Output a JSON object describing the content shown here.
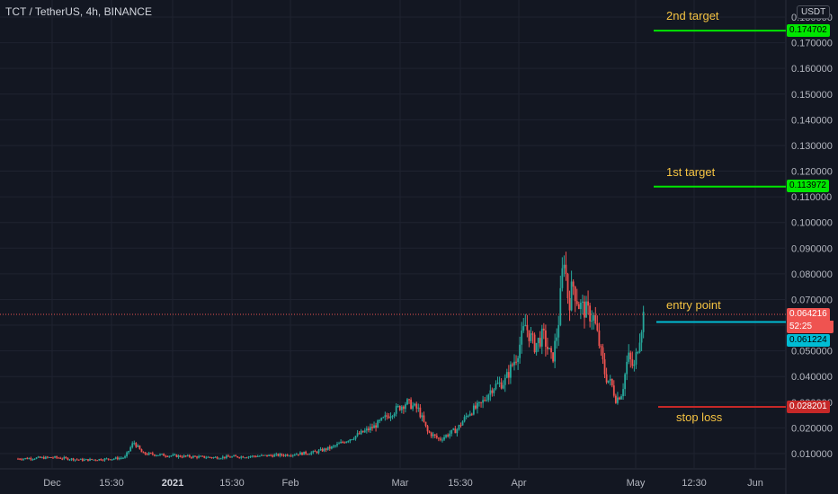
{
  "header": {
    "title": "TCT / TetherUS, 4h, BINANCE",
    "currency": "USDT"
  },
  "annotations": {
    "second_target": "2nd target",
    "first_target": "1st target",
    "entry_point": "entry point",
    "stop_loss": "stop loss"
  },
  "price_tags": {
    "second_target": "0.174702",
    "first_target": "0.113972",
    "last_price": "0.064216",
    "countdown": "52:25",
    "entry": "0.061224",
    "stop": "0.028201"
  },
  "colors": {
    "background": "#131722",
    "grid": "#1f2330",
    "up": "#26a69a",
    "down": "#ef5350",
    "target_line": "#00e600",
    "entry_line": "#00bcd4",
    "stop_line": "#c62828",
    "annotation_text": "#f5c342"
  },
  "chart_data": {
    "type": "candlestick",
    "title": "TCT / TetherUS, 4h, BINANCE",
    "y_axis_labels": [
      "0.180000",
      "0.170000",
      "0.160000",
      "0.150000",
      "0.140000",
      "0.130000",
      "0.120000",
      "0.110000",
      "0.100000",
      "0.090000",
      "0.080000",
      "0.070000",
      "0.060000",
      "0.050000",
      "0.040000",
      "0.030000",
      "0.020000",
      "0.010000"
    ],
    "x_axis_labels": [
      "Dec",
      "15:30",
      "2021",
      "15:30",
      "Feb",
      "Mar",
      "15:30",
      "Apr",
      "May",
      "12:30",
      "Jun"
    ],
    "ylim": [
      0.002,
      0.182
    ],
    "price_path": [
      [
        0.0,
        0.008
      ],
      [
        0.06,
        0.0085
      ],
      [
        0.11,
        0.0075
      ],
      [
        0.16,
        0.008
      ],
      [
        0.18,
        0.0085
      ],
      [
        0.195,
        0.0145
      ],
      [
        0.21,
        0.01
      ],
      [
        0.27,
        0.009
      ],
      [
        0.33,
        0.0085
      ],
      [
        0.4,
        0.009
      ],
      [
        0.45,
        0.0095
      ],
      [
        0.5,
        0.0105
      ],
      [
        0.53,
        0.0125
      ],
      [
        0.57,
        0.017
      ],
      [
        0.6,
        0.0205
      ],
      [
        0.63,
        0.026
      ],
      [
        0.655,
        0.03
      ],
      [
        0.675,
        0.027
      ],
      [
        0.69,
        0.0185
      ],
      [
        0.71,
        0.0155
      ],
      [
        0.74,
        0.0195
      ],
      [
        0.76,
        0.026
      ],
      [
        0.78,
        0.029
      ],
      [
        0.8,
        0.036
      ],
      [
        0.82,
        0.038
      ],
      [
        0.84,
        0.048
      ],
      [
        0.855,
        0.06
      ],
      [
        0.87,
        0.052
      ],
      [
        0.885,
        0.056
      ],
      [
        0.9,
        0.046
      ],
      [
        0.91,
        0.059
      ],
      [
        0.92,
        0.088
      ],
      [
        0.928,
        0.068
      ],
      [
        0.935,
        0.076
      ],
      [
        0.945,
        0.068
      ],
      [
        0.96,
        0.065
      ],
      [
        0.97,
        0.063
      ],
      [
        0.98,
        0.052
      ],
      [
        0.99,
        0.04
      ],
      [
        1.0,
        0.037
      ],
      [
        1.008,
        0.031
      ],
      [
        1.018,
        0.034
      ],
      [
        1.028,
        0.048
      ],
      [
        1.038,
        0.043
      ],
      [
        1.046,
        0.054
      ],
      [
        1.054,
        0.064
      ]
    ],
    "last_price": 0.064216,
    "levels": [
      {
        "label": "2nd target",
        "value": 0.174702
      },
      {
        "label": "1st target",
        "value": 0.113972
      },
      {
        "label": "entry point",
        "value": 0.061224
      },
      {
        "label": "stop loss",
        "value": 0.028201
      }
    ]
  }
}
